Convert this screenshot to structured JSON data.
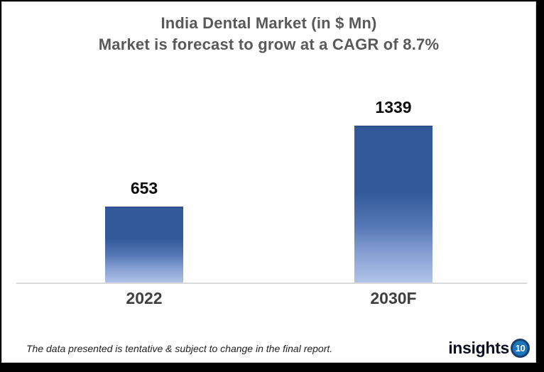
{
  "title": {
    "line1": "India Dental Market (in $ Mn)",
    "line2": "Market is forecast to grow at a CAGR of 8.7%",
    "color": "#595959"
  },
  "chart_data": {
    "type": "bar",
    "categories": [
      "2022",
      "2030F"
    ],
    "values": [
      653,
      1339
    ],
    "title": "India Dental Market (in $ Mn)",
    "subtitle": "Market is forecast to grow at a CAGR of 8.7%",
    "xlabel": "",
    "ylabel": "",
    "ylim": [
      0,
      1400
    ],
    "grid": false,
    "legend": false,
    "bar_gradient_top": "#33599b",
    "bar_gradient_bottom": "#aabde4",
    "axis_line_color": "#d9d9d9",
    "value_label_color": "#0d0d0d",
    "category_label_color": "#3f3f3f"
  },
  "footer": {
    "disclaimer": "The data presented is tentative & subject to change in the final report.",
    "logo_text": "insights",
    "logo_badge": "10",
    "logo_badge_bg": "#1b76bc",
    "logo_badge_ring": "#1d3e6f",
    "logo_text_color": "#0e0e24"
  }
}
